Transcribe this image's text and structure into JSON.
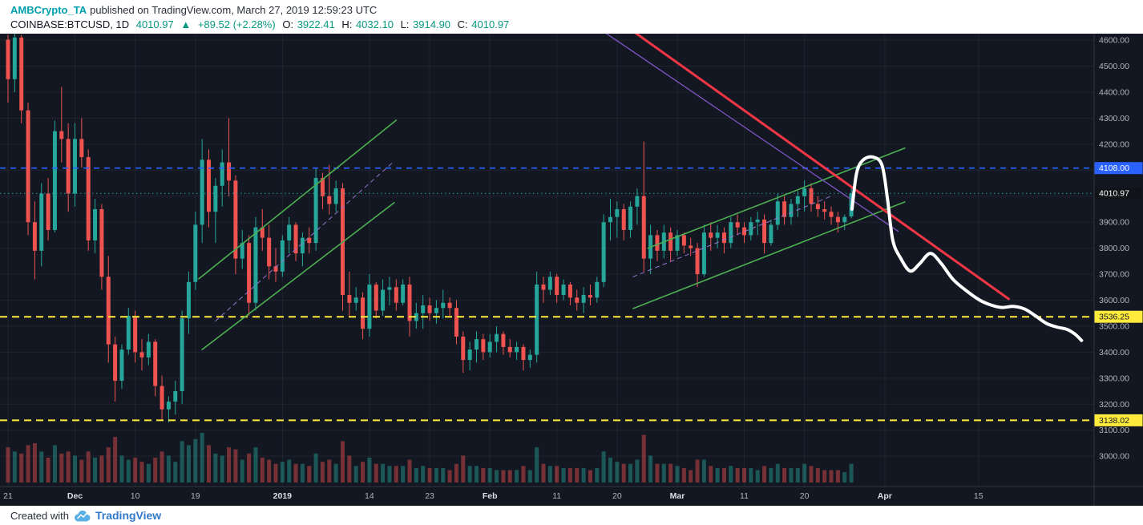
{
  "header": {
    "author": "AMBCrypto_TA",
    "published_suffix": "published on TradingView.com, March 27, 2019 12:59:23 UTC",
    "symbol_interval": "COINBASE:BTCUSD, 1D",
    "last_price": "4010.97",
    "direction_arrow": "▲",
    "change": "+89.52 (+2.28%)",
    "ohlc": {
      "o_label": "O:",
      "o": "3922.41",
      "h_label": "H:",
      "h": "4032.10",
      "l_label": "L:",
      "l": "3914.90",
      "c_label": "C:",
      "c": "4010.97"
    }
  },
  "footer": {
    "created_with": "Created with",
    "brand": "TradingView"
  },
  "colors": {
    "chart_bg": "#131722",
    "up": "#26a69a",
    "down": "#ef5350",
    "vol_up": "rgba(38,166,154,0.45)",
    "vol_down": "rgba(239,83,80,0.45)",
    "grid": "rgba(255,255,255,0.055)",
    "axis_text": "#b2b5be",
    "axis_text_major": "#dcdfe5",
    "axis_border": "rgba(135,140,155,0.25)",
    "accent_blue": "#2962ff",
    "accent_yellow": "#ffeb3b",
    "last_price_teal": "#26a69a",
    "trend_green": "#4caf50",
    "trend_red": "#f23645",
    "trend_purple": "#7e57c2",
    "trend_purple_dash": "#9575cd",
    "projection_white": "#ffffff",
    "author_teal": "#00a0ae",
    "header_green": "#089981",
    "brand_blue": "#3179c9",
    "brand_icon": "#58aee5"
  },
  "chart_data": {
    "type": "candlestick",
    "symbol": "COINBASE:BTCUSD",
    "interval": "1D",
    "start_date": "2018-11-21",
    "ylim": [
      2874,
      4625
    ],
    "price_ticks": [
      4600,
      4500,
      4400,
      4300,
      4200,
      4100,
      4000,
      3900,
      3800,
      3700,
      3600,
      3500,
      3400,
      3300,
      3200,
      3100,
      3000
    ],
    "time_ticks": [
      {
        "d": 0,
        "label": "21"
      },
      {
        "d": 10,
        "label": "Dec",
        "major": true
      },
      {
        "d": 19,
        "label": "10"
      },
      {
        "d": 28,
        "label": "19"
      },
      {
        "d": 41,
        "label": "2019",
        "major": true
      },
      {
        "d": 54,
        "label": "14"
      },
      {
        "d": 63,
        "label": "23"
      },
      {
        "d": 72,
        "label": "Feb",
        "major": true
      },
      {
        "d": 82,
        "label": "11"
      },
      {
        "d": 91,
        "label": "20"
      },
      {
        "d": 100,
        "label": "Mar",
        "major": true
      },
      {
        "d": 110,
        "label": "11"
      },
      {
        "d": 119,
        "label": "20"
      },
      {
        "d": 131,
        "label": "Apr",
        "major": true
      },
      {
        "d": 145,
        "label": "15"
      }
    ],
    "candles": [
      [
        4602,
        4621,
        4360,
        4450,
        34
      ],
      [
        4450,
        4640,
        4400,
        4610,
        30
      ],
      [
        4610,
        4620,
        4280,
        4330,
        28
      ],
      [
        4330,
        4360,
        3850,
        3900,
        36
      ],
      [
        3900,
        3980,
        3680,
        3790,
        38
      ],
      [
        3790,
        4050,
        3730,
        4010,
        30
      ],
      [
        4010,
        4070,
        3830,
        3870,
        24
      ],
      [
        3870,
        4290,
        3860,
        4250,
        36
      ],
      [
        4250,
        4420,
        4130,
        4220,
        28
      ],
      [
        4220,
        4280,
        3940,
        4010,
        30
      ],
      [
        4010,
        4280,
        3960,
        4220,
        26
      ],
      [
        4220,
        4300,
        4110,
        4150,
        22
      ],
      [
        4150,
        4180,
        3790,
        3830,
        30
      ],
      [
        3830,
        3990,
        3780,
        3950,
        24
      ],
      [
        3950,
        3970,
        3640,
        3690,
        26
      ],
      [
        3690,
        3770,
        3360,
        3430,
        34
      ],
      [
        3430,
        3460,
        3210,
        3290,
        44
      ],
      [
        3290,
        3430,
        3260,
        3410,
        26
      ],
      [
        3410,
        3570,
        3390,
        3540,
        22
      ],
      [
        3540,
        3560,
        3360,
        3400,
        24
      ],
      [
        3400,
        3450,
        3330,
        3380,
        20
      ],
      [
        3380,
        3470,
        3350,
        3440,
        18
      ],
      [
        3440,
        3450,
        3230,
        3270,
        24
      ],
      [
        3270,
        3310,
        3140,
        3180,
        30
      ],
      [
        3180,
        3230,
        3130,
        3210,
        26
      ],
      [
        3210,
        3290,
        3160,
        3250,
        20
      ],
      [
        3250,
        3560,
        3200,
        3530,
        40
      ],
      [
        3530,
        3710,
        3470,
        3670,
        36
      ],
      [
        3670,
        3940,
        3640,
        3890,
        42
      ],
      [
        3890,
        4220,
        3820,
        4140,
        48
      ],
      [
        4140,
        4180,
        3880,
        3940,
        36
      ],
      [
        3940,
        4070,
        3820,
        4040,
        28
      ],
      [
        4040,
        4180,
        3960,
        4130,
        26
      ],
      [
        4130,
        4300,
        4000,
        4060,
        34
      ],
      [
        4060,
        4080,
        3700,
        3760,
        32
      ],
      [
        3760,
        3870,
        3720,
        3820,
        22
      ],
      [
        3820,
        3850,
        3540,
        3590,
        28
      ],
      [
        3590,
        3920,
        3560,
        3880,
        34
      ],
      [
        3880,
        3950,
        3790,
        3840,
        24
      ],
      [
        3840,
        3890,
        3680,
        3730,
        22
      ],
      [
        3730,
        3800,
        3670,
        3710,
        18
      ],
      [
        3710,
        3850,
        3690,
        3830,
        20
      ],
      [
        3830,
        3920,
        3780,
        3890,
        22
      ],
      [
        3890,
        3900,
        3750,
        3780,
        18
      ],
      [
        3780,
        3860,
        3730,
        3840,
        18
      ],
      [
        3840,
        3880,
        3780,
        3820,
        16
      ],
      [
        3820,
        4110,
        3790,
        4070,
        28
      ],
      [
        4070,
        4090,
        3950,
        4000,
        20
      ],
      [
        4000,
        4120,
        3930,
        3970,
        22
      ],
      [
        3970,
        4060,
        3940,
        4030,
        18
      ],
      [
        4030,
        4050,
        3560,
        3620,
        40
      ],
      [
        3620,
        3710,
        3540,
        3590,
        26
      ],
      [
        3590,
        3650,
        3560,
        3610,
        16
      ],
      [
        3610,
        3630,
        3450,
        3490,
        20
      ],
      [
        3490,
        3700,
        3460,
        3660,
        24
      ],
      [
        3660,
        3670,
        3530,
        3560,
        18
      ],
      [
        3560,
        3680,
        3540,
        3640,
        18
      ],
      [
        3640,
        3690,
        3580,
        3650,
        16
      ],
      [
        3650,
        3680,
        3560,
        3590,
        16
      ],
      [
        3590,
        3680,
        3580,
        3660,
        16
      ],
      [
        3660,
        3690,
        3460,
        3520,
        22
      ],
      [
        3520,
        3590,
        3490,
        3550,
        14
      ],
      [
        3550,
        3620,
        3490,
        3580,
        16
      ],
      [
        3580,
        3610,
        3520,
        3550,
        14
      ],
      [
        3550,
        3600,
        3510,
        3570,
        14
      ],
      [
        3570,
        3640,
        3530,
        3590,
        14
      ],
      [
        3590,
        3610,
        3540,
        3570,
        12
      ],
      [
        3570,
        3600,
        3430,
        3460,
        18
      ],
      [
        3460,
        3480,
        3320,
        3370,
        26
      ],
      [
        3370,
        3440,
        3330,
        3410,
        16
      ],
      [
        3410,
        3480,
        3360,
        3450,
        16
      ],
      [
        3450,
        3470,
        3370,
        3400,
        14
      ],
      [
        3400,
        3470,
        3380,
        3440,
        14
      ],
      [
        3440,
        3500,
        3400,
        3470,
        12
      ],
      [
        3470,
        3480,
        3390,
        3420,
        12
      ],
      [
        3420,
        3450,
        3380,
        3400,
        12
      ],
      [
        3400,
        3440,
        3370,
        3420,
        12
      ],
      [
        3420,
        3430,
        3330,
        3370,
        16
      ],
      [
        3370,
        3410,
        3340,
        3390,
        12
      ],
      [
        3390,
        3710,
        3360,
        3660,
        34
      ],
      [
        3660,
        3690,
        3590,
        3640,
        18
      ],
      [
        3640,
        3710,
        3620,
        3690,
        16
      ],
      [
        3690,
        3700,
        3590,
        3620,
        16
      ],
      [
        3620,
        3680,
        3600,
        3660,
        14
      ],
      [
        3660,
        3670,
        3580,
        3610,
        14
      ],
      [
        3610,
        3640,
        3560,
        3590,
        14
      ],
      [
        3590,
        3650,
        3550,
        3620,
        14
      ],
      [
        3620,
        3660,
        3580,
        3610,
        12
      ],
      [
        3610,
        3690,
        3590,
        3670,
        14
      ],
      [
        3670,
        3930,
        3650,
        3900,
        30
      ],
      [
        3900,
        3990,
        3830,
        3920,
        24
      ],
      [
        3920,
        3980,
        3840,
        3950,
        20
      ],
      [
        3950,
        3970,
        3830,
        3870,
        18
      ],
      [
        3870,
        3980,
        3840,
        3960,
        18
      ],
      [
        3960,
        4030,
        3890,
        4000,
        22
      ],
      [
        4000,
        4210,
        3710,
        3760,
        46
      ],
      [
        3760,
        3890,
        3700,
        3850,
        26
      ],
      [
        3850,
        3870,
        3750,
        3790,
        18
      ],
      [
        3790,
        3890,
        3760,
        3860,
        18
      ],
      [
        3860,
        3880,
        3750,
        3790,
        18
      ],
      [
        3790,
        3870,
        3770,
        3850,
        16
      ],
      [
        3850,
        3860,
        3780,
        3810,
        14
      ],
      [
        3810,
        3840,
        3770,
        3800,
        12
      ],
      [
        3800,
        3820,
        3650,
        3700,
        22
      ],
      [
        3700,
        3890,
        3690,
        3860,
        22
      ],
      [
        3860,
        3900,
        3790,
        3840,
        16
      ],
      [
        3840,
        3890,
        3800,
        3860,
        14
      ],
      [
        3860,
        3880,
        3780,
        3820,
        14
      ],
      [
        3820,
        3920,
        3800,
        3900,
        16
      ],
      [
        3900,
        3930,
        3850,
        3880,
        14
      ],
      [
        3880,
        3900,
        3820,
        3850,
        14
      ],
      [
        3850,
        3920,
        3830,
        3900,
        14
      ],
      [
        3900,
        3940,
        3850,
        3910,
        12
      ],
      [
        3910,
        3930,
        3780,
        3820,
        16
      ],
      [
        3820,
        3910,
        3810,
        3890,
        14
      ],
      [
        3890,
        4010,
        3870,
        3980,
        18
      ],
      [
        3980,
        4000,
        3890,
        3920,
        14
      ],
      [
        3920,
        3990,
        3890,
        3970,
        14
      ],
      [
        3970,
        4020,
        3920,
        4000,
        14
      ],
      [
        4000,
        4060,
        3940,
        4030,
        18
      ],
      [
        4030,
        4050,
        3940,
        3970,
        16
      ],
      [
        3970,
        4000,
        3920,
        3950,
        14
      ],
      [
        3950,
        3980,
        3910,
        3940,
        12
      ],
      [
        3940,
        3960,
        3890,
        3920,
        12
      ],
      [
        3920,
        3940,
        3860,
        3900,
        12
      ],
      [
        3900,
        3930,
        3870,
        3920,
        10
      ],
      [
        3922.41,
        4032.1,
        3914.9,
        4010.97,
        18
      ]
    ],
    "horizontal_levels": [
      {
        "price": 4108.0,
        "label": "4108.00",
        "style": "dashed",
        "color": "#2962ff",
        "label_bg": "#2962ff",
        "label_fg": "#ffffff"
      },
      {
        "price": 3536.25,
        "label": "3536.25",
        "style": "dashed",
        "color": "#ffeb3b",
        "label_bg": "#ffeb3b",
        "label_fg": "#131722"
      },
      {
        "price": 3138.02,
        "label": "3138.02",
        "style": "dashed",
        "color": "#ffeb3b",
        "label_bg": "#ffeb3b",
        "label_fg": "#131722"
      },
      {
        "price": 4010.97,
        "label": "4010.97",
        "style": "dotted",
        "color": "#26a69a",
        "label_bg": "#101418",
        "label_fg": "#ffffff",
        "role": "last-price"
      }
    ],
    "trendlines": [
      {
        "name": "channel-dec-jan-upper",
        "color": "#4caf50",
        "width": 1.6,
        "points": [
          [
            28.5,
            3682
          ],
          [
            58,
            4292
          ]
        ]
      },
      {
        "name": "channel-dec-jan-lower",
        "color": "#4caf50",
        "width": 1.6,
        "points": [
          [
            29,
            3410
          ],
          [
            57.7,
            3975
          ]
        ]
      },
      {
        "name": "channel-mar-lower",
        "color": "#4caf50",
        "width": 1.6,
        "points": [
          [
            93.4,
            3568
          ],
          [
            134,
            3978
          ]
        ]
      },
      {
        "name": "channel-mar-upper",
        "color": "#4caf50",
        "width": 1.6,
        "points": [
          [
            95.6,
            3800
          ],
          [
            134,
            4185
          ]
        ]
      },
      {
        "name": "midline-dec-jan-dashed",
        "color": "#9575cd",
        "width": 1,
        "dash": "5 5",
        "points": [
          [
            31,
            3520
          ],
          [
            57.5,
            4130
          ]
        ]
      },
      {
        "name": "midline-mar-dashed",
        "color": "#9575cd",
        "width": 1,
        "dash": "5 5",
        "points": [
          [
            93.4,
            3690
          ],
          [
            123,
            4000
          ]
        ]
      },
      {
        "name": "downtrend-purple",
        "color": "#7e57c2",
        "width": 1.3,
        "points": [
          [
            88,
            4650
          ],
          [
            133,
            3865
          ]
        ]
      },
      {
        "name": "downtrend-red",
        "color": "#f23645",
        "width": 3,
        "points": [
          [
            92,
            4660
          ],
          [
            149.5,
            3605
          ]
        ]
      }
    ],
    "projection_path": [
      [
        126.1,
        3950
      ],
      [
        126.8,
        4090
      ],
      [
        127.8,
        4140
      ],
      [
        129.3,
        4150
      ],
      [
        130.6,
        4118
      ],
      [
        131.4,
        3990
      ],
      [
        132.2,
        3830
      ],
      [
        133.4,
        3760
      ],
      [
        134.8,
        3712
      ],
      [
        136.2,
        3740
      ],
      [
        137.8,
        3780
      ],
      [
        139.4,
        3742
      ],
      [
        141.2,
        3680
      ],
      [
        143.2,
        3636
      ],
      [
        145.2,
        3600
      ],
      [
        146.8,
        3582
      ],
      [
        148.5,
        3572
      ],
      [
        150.2,
        3576
      ],
      [
        151.9,
        3566
      ],
      [
        153.5,
        3540
      ],
      [
        155.2,
        3510
      ],
      [
        156.8,
        3496
      ],
      [
        158.2,
        3488
      ],
      [
        159.4,
        3470
      ],
      [
        160.4,
        3445
      ]
    ]
  }
}
